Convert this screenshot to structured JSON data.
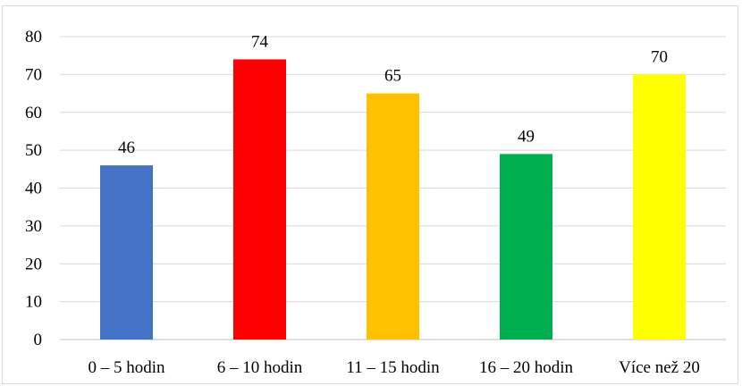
{
  "chart_data": {
    "type": "bar",
    "categories": [
      "0 – 5 hodin",
      "6 – 10 hodin",
      "11 – 15 hodin",
      "16 – 20 hodin",
      "Více než 20"
    ],
    "values": [
      46,
      74,
      65,
      49,
      70
    ],
    "bar_colors": [
      "#4472c4",
      "#ff0000",
      "#ffc000",
      "#00b050",
      "#ffff00"
    ],
    "title": "",
    "xlabel": "",
    "ylabel": "",
    "ylim": [
      0,
      80
    ],
    "yticks": [
      0,
      10,
      20,
      30,
      40,
      50,
      60,
      70,
      80
    ],
    "grid": true,
    "legend": "none",
    "data_labels": true
  }
}
